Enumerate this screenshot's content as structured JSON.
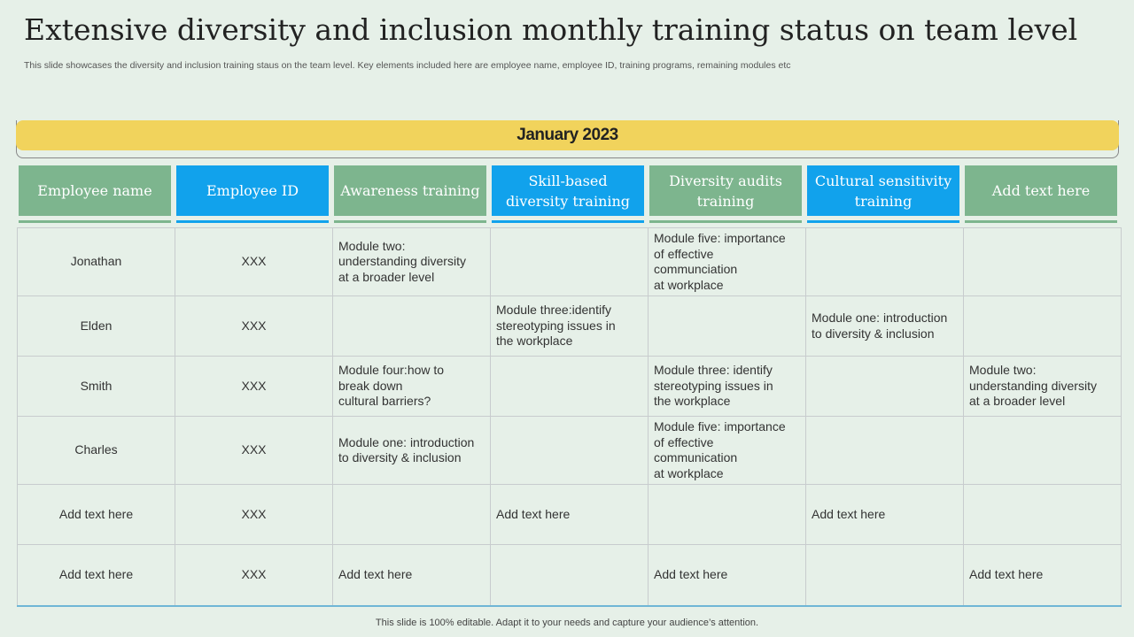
{
  "title": "Extensive diversity and inclusion monthly training status on team level",
  "subtitle": "This slide showcases the diversity and inclusion training staus on the team level. Key elements included here are employee name, employee ID, training programs, remaining modules etc",
  "month": "January 2023",
  "headers": [
    {
      "label": "Employee name",
      "color": "#7db58e"
    },
    {
      "label": "Employee ID",
      "color": "#11a2ec"
    },
    {
      "label": "Awareness training",
      "color": "#7db58e"
    },
    {
      "label": "Skill-based diversity training",
      "color": "#11a2ec"
    },
    {
      "label": "Diversity audits training",
      "color": "#7db58e"
    },
    {
      "label": "Cultural sensitivity training",
      "color": "#11a2ec"
    },
    {
      "label": "Add text here",
      "color": "#7db58e"
    }
  ],
  "rows": [
    [
      "Jonathan",
      "XXX",
      "Module two:\nunderstanding diversity\nat a broader level",
      "",
      "Module five: importance\nof effective\ncommunciation\nat workplace",
      "",
      ""
    ],
    [
      "Elden",
      "XXX",
      "",
      "Module three:identify\nstereotyping issues in\nthe workplace",
      "",
      "Module one: introduction\nto diversity & inclusion",
      ""
    ],
    [
      "Smith",
      "XXX",
      "Module four:how to\nbreak down\ncultural barriers?",
      "",
      "Module three: identify\nstereotyping issues in\nthe workplace",
      "",
      "Module two:\nunderstanding diversity\nat a broader level"
    ],
    [
      "Charles",
      "XXX",
      "Module one: introduction\nto diversity & inclusion",
      "",
      "Module five: importance\nof effective\ncommunication\nat workplace",
      "",
      ""
    ],
    [
      "Add text here",
      "XXX",
      "",
      "Add text here",
      "",
      "Add text here",
      ""
    ],
    [
      "Add text here",
      "XXX",
      "Add text here",
      "",
      "Add text here",
      "",
      "Add text here"
    ]
  ],
  "footer": "This slide is 100% editable. Adapt it to your needs and capture your audience’s attention."
}
